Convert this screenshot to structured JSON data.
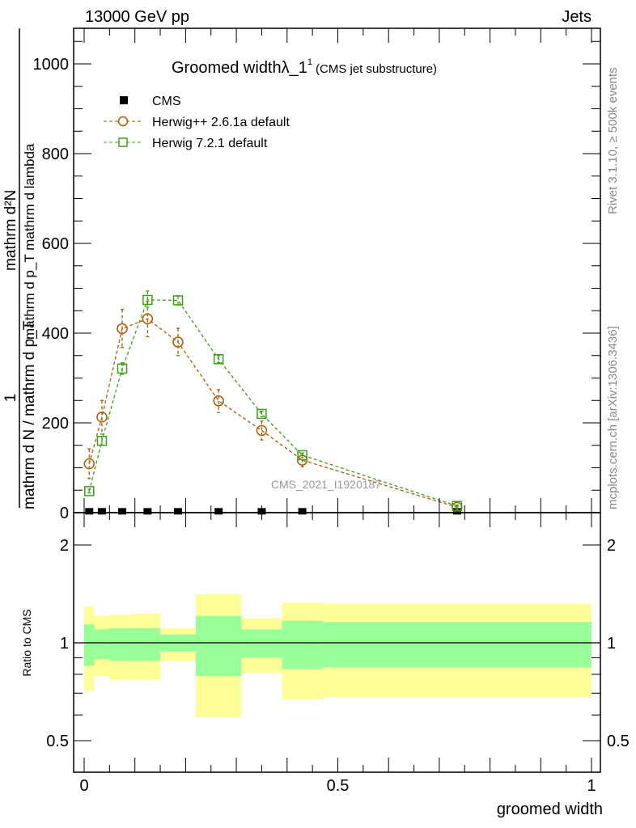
{
  "header": {
    "left": "13000 GeV pp",
    "right": "Jets"
  },
  "side_text": {
    "rivet": "Rivet 3.1.10, ≥ 500k events",
    "mcplots": "mcplots.cern.ch [arXiv:1306.3436]"
  },
  "watermark": "CMS_2021_I1920187",
  "chart_data": [
    {
      "type": "line",
      "title": "Groomed widthλ_1",
      "title_sup": "1",
      "subtitle": "(CMS jet substructure)",
      "ylabel_parts": {
        "num_top": "mathrm d²N",
        "den_top": "mathrm d p_T mathrm d lambda",
        "num_bottom": "1",
        "den_bottom": "mathrm d N / mathrm d p_T"
      },
      "xlabel": "groomed width",
      "xlim": [
        0,
        1
      ],
      "ylim": [
        0,
        1000
      ],
      "yticks": [
        0,
        200,
        400,
        600,
        800,
        1000
      ],
      "xticks": [
        0,
        0.5,
        1
      ],
      "xtick_labels": [
        "0",
        "0.5",
        "1"
      ],
      "legend_position": "top-left",
      "x": [
        0.01,
        0.035,
        0.075,
        0.125,
        0.185,
        0.265,
        0.35,
        0.43,
        0.735
      ],
      "series": [
        {
          "name": "CMS",
          "color": "#000000",
          "marker": "filled-square",
          "values": [
            3,
            3,
            3,
            3,
            3,
            3,
            3,
            3,
            3
          ]
        },
        {
          "name": "Herwig++ 2.6.1a default",
          "color": "#b35900",
          "marker": "open-circle",
          "values": [
            109,
            213,
            410,
            432,
            380,
            249,
            183,
            117,
            12
          ],
          "err_up": [
            142,
            250,
            453,
            470,
            411,
            274,
            204,
            132,
            16
          ],
          "err_down": [
            76,
            175,
            368,
            392,
            350,
            223,
            162,
            102,
            8
          ]
        },
        {
          "name": "Herwig 7.2.1 default",
          "color": "#3c9e1a",
          "marker": "open-square",
          "values": [
            48,
            160,
            321,
            474,
            473,
            342,
            220,
            128,
            15
          ],
          "err_up": [
            52,
            170,
            334,
            494,
            483,
            350,
            226,
            133,
            17
          ],
          "err_down": [
            44,
            150,
            308,
            458,
            463,
            334,
            214,
            123,
            13
          ]
        }
      ]
    },
    {
      "type": "area",
      "ylabel": "Ratio to CMS",
      "yscale": "log",
      "ylim": [
        0.4,
        2.5
      ],
      "yticks": [
        0.5,
        1,
        2
      ],
      "ytick_labels": [
        "0.5",
        "1",
        "2"
      ],
      "bin_edges": [
        0,
        0.02,
        0.05,
        0.1,
        0.15,
        0.22,
        0.31,
        0.39,
        0.47,
        1.0
      ],
      "band_stat": {
        "color": "#99ff99",
        "upper": [
          1.14,
          1.1,
          1.11,
          1.11,
          1.06,
          1.21,
          1.1,
          1.17,
          1.16
        ],
        "lower": [
          0.85,
          0.89,
          0.88,
          0.88,
          0.94,
          0.79,
          0.9,
          0.83,
          0.84
        ]
      },
      "band_total": {
        "color": "#ffff99",
        "upper": [
          1.29,
          1.21,
          1.22,
          1.23,
          1.11,
          1.41,
          1.19,
          1.33,
          1.32
        ],
        "lower": [
          0.71,
          0.79,
          0.77,
          0.77,
          0.88,
          0.59,
          0.81,
          0.67,
          0.68
        ]
      }
    }
  ]
}
